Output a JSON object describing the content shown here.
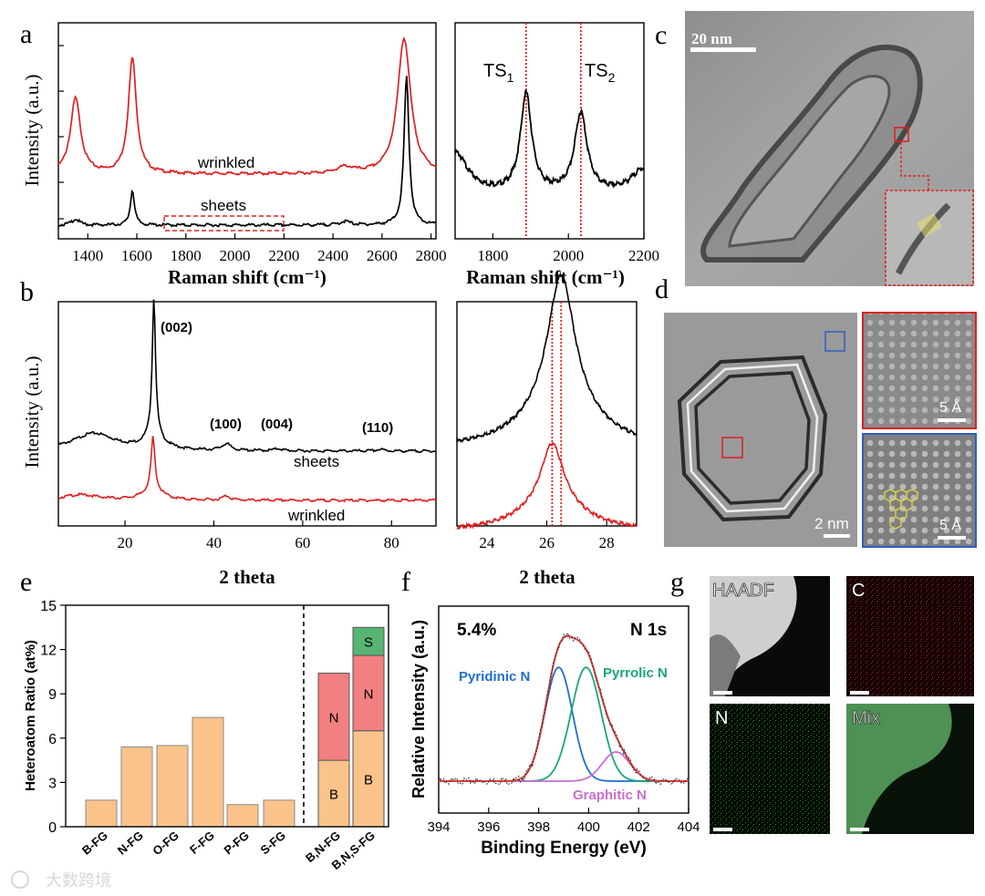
{
  "panel_letters": {
    "a": "a",
    "b": "b",
    "c": "c",
    "d": "d",
    "e": "e",
    "f": "f",
    "g": "g"
  },
  "watermark": "大数跨境",
  "colors": {
    "red": "#e02020",
    "black": "#000000",
    "bar": "#f9c38a",
    "bar_edge": "#8a8a8a",
    "n_fill": "#f28080",
    "s_fill": "#58b472",
    "pyridinic": "#1f6fcf",
    "pyrrolic": "#1aa67a",
    "graphitic": "#c86ed0",
    "envelope": "#d9403a"
  },
  "chart_data": [
    {
      "id": "a_main",
      "type": "line",
      "xlabel": "Raman shift (cm⁻¹)",
      "ylabel": "Intensity (a.u.)",
      "xlim": [
        1280,
        2820
      ],
      "xticks": [
        1400,
        1600,
        1800,
        2000,
        2200,
        2400,
        2600,
        2800
      ],
      "annotations": [
        "wrinkled",
        "sheets"
      ],
      "series": [
        {
          "name": "wrinkled",
          "color": "#e02020",
          "baseline": 0.42,
          "peaks": [
            {
              "x": 1350,
              "h": 0.62,
              "w": 25
            },
            {
              "x": 1582,
              "h": 0.95,
              "w": 20
            },
            {
              "x": 2450,
              "h": 0.05,
              "w": 40
            },
            {
              "x": 2690,
              "h": 1.12,
              "w": 32
            }
          ]
        },
        {
          "name": "sheets",
          "color": "#000000",
          "baseline": 0.0,
          "peaks": [
            {
              "x": 1350,
              "h": 0.05,
              "w": 18
            },
            {
              "x": 1582,
              "h": 0.29,
              "w": 10
            },
            {
              "x": 2450,
              "h": 0.03,
              "w": 25
            },
            {
              "x": 2700,
              "h": 1.22,
              "w": 12
            }
          ]
        }
      ]
    },
    {
      "id": "a_zoom",
      "type": "line",
      "xlabel": "Raman shift (cm⁻¹)",
      "xlim": [
        1700,
        2200
      ],
      "xticks": [
        1800,
        2000,
        2200
      ],
      "markers": [
        {
          "x": 1888,
          "label": "TS",
          "sub": "1"
        },
        {
          "x": 2033,
          "label": "TS",
          "sub": "2"
        }
      ],
      "series": [
        {
          "name": "sheets",
          "color": "#000000",
          "baseline": 0.18,
          "peaks": [
            {
              "x": 1888,
              "h": 0.72,
              "w": 18
            },
            {
              "x": 2033,
              "h": 0.58,
              "w": 20
            },
            {
              "x": 1700,
              "h": 0.3,
              "w": 40
            },
            {
              "x": 2200,
              "h": 0.18,
              "w": 40
            }
          ]
        }
      ]
    },
    {
      "id": "b_main",
      "type": "line",
      "xlabel": "2 theta",
      "ylabel": "Intensity (a.u.)",
      "xlim": [
        5,
        90
      ],
      "xticks": [
        20,
        40,
        60,
        80
      ],
      "peak_labels": [
        "(002)",
        "(100)",
        "(004)",
        "(110)"
      ],
      "annotations": [
        "sheets",
        "wrinkled"
      ],
      "series": [
        {
          "name": "sheets",
          "color": "#000000",
          "baseline": 0.0,
          "peaks": [
            {
              "x": 13,
              "h": 0.16,
              "w": 6
            },
            {
              "x": 26.5,
              "h": 1.25,
              "w": 0.45
            },
            {
              "x": 26.5,
              "h": 0.12,
              "w": 2.5
            },
            {
              "x": 42.8,
              "h": 0.06,
              "w": 1.2
            },
            {
              "x": 54.5,
              "h": 0.02,
              "w": 1.0
            },
            {
              "x": 77.5,
              "h": 0.015,
              "w": 1.0
            }
          ]
        },
        {
          "name": "wrinkled",
          "color": "#e02020",
          "baseline": -0.45,
          "peaks": [
            {
              "x": 10,
              "h": 0.05,
              "w": 5
            },
            {
              "x": 26.3,
              "h": 0.48,
              "w": 0.5
            },
            {
              "x": 26.3,
              "h": 0.1,
              "w": 2.5
            },
            {
              "x": 42.8,
              "h": 0.04,
              "w": 1.0
            }
          ]
        }
      ]
    },
    {
      "id": "b_zoom",
      "type": "line",
      "xlabel": "2 theta",
      "xlim": [
        23,
        29
      ],
      "xticks": [
        24,
        26,
        28
      ],
      "markers": [
        {
          "x": 26.18
        },
        {
          "x": 26.48
        }
      ],
      "series": [
        {
          "name": "sheets",
          "color": "#000000",
          "baseline": 0.0,
          "peaks": [
            {
              "x": 26.48,
              "h": 1.0,
              "w": 0.55
            },
            {
              "x": 26.48,
              "h": 0.28,
              "w": 1.5
            }
          ]
        },
        {
          "name": "wrinkled",
          "color": "#e02020",
          "baseline": -0.6,
          "peaks": [
            {
              "x": 26.18,
              "h": 0.45,
              "w": 0.45
            },
            {
              "x": 26.18,
              "h": 0.2,
              "w": 1.3
            }
          ]
        }
      ]
    },
    {
      "id": "e",
      "type": "bar",
      "ylabel": "Heteroatom Ratio (at%)",
      "ylim": [
        0,
        15
      ],
      "yticks": [
        0,
        3,
        6,
        9,
        12,
        15
      ],
      "categories": [
        "B-FG",
        "N-FG",
        "O-FG",
        "F-FG",
        "P-FG",
        "S-FG",
        "B,N-FG",
        "B,N,S-FG"
      ],
      "values": [
        1.8,
        5.4,
        5.5,
        7.4,
        1.5,
        1.8,
        null,
        null
      ],
      "stacked": [
        {
          "category": "B,N-FG",
          "segments": [
            {
              "label": "B",
              "value": 4.5
            },
            {
              "label": "N",
              "value": 5.9
            }
          ]
        },
        {
          "category": "B,N,S-FG",
          "segments": [
            {
              "label": "B",
              "value": 6.5
            },
            {
              "label": "N",
              "value": 5.1
            },
            {
              "label": "S",
              "value": 1.9
            }
          ]
        }
      ]
    },
    {
      "id": "f",
      "type": "line",
      "xlabel": "Binding Energy (eV)",
      "ylabel": "Relative Intensity (a.u.)",
      "xlim": [
        394,
        404
      ],
      "xticks": [
        394,
        396,
        398,
        400,
        402,
        404
      ],
      "annotations": [
        "5.4%",
        "N 1s"
      ],
      "series": [
        {
          "name": "Pyridinic N",
          "color": "#1f6fcf",
          "center": 398.8,
          "h": 0.78,
          "w": 0.55
        },
        {
          "name": "Pyrrolic N",
          "color": "#1aa67a",
          "center": 399.9,
          "h": 0.78,
          "w": 0.6
        },
        {
          "name": "Graphitic N",
          "color": "#c86ed0",
          "center": 401.1,
          "h": 0.2,
          "w": 0.55
        }
      ]
    }
  ],
  "panel_c": {
    "scale_text": "20 nm"
  },
  "panel_d": {
    "scale_main": "2 nm",
    "scale_inset1": "5 Å",
    "scale_inset2": "5 Å"
  },
  "panel_g": {
    "labels": [
      "HAADF",
      "C",
      "N",
      "Mix"
    ]
  }
}
